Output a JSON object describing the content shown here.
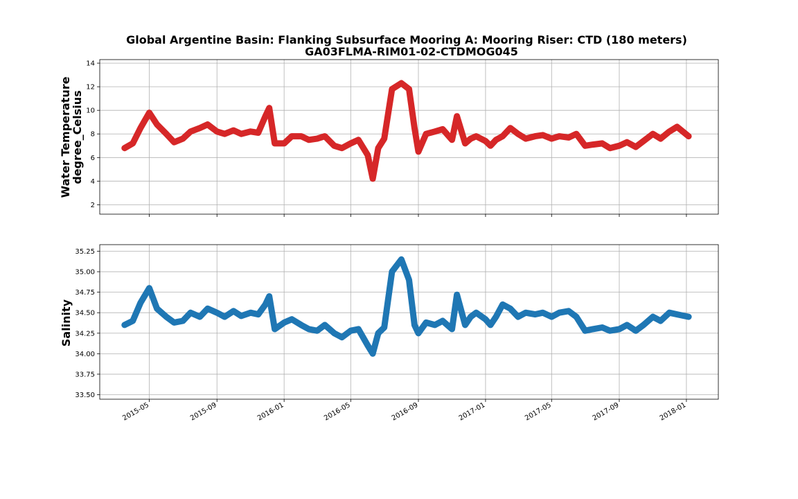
{
  "chart_data": {
    "title": "Global Argentine Basin: Flanking Subsurface Mooring A: Mooring Riser: CTD (180 meters)",
    "subtitle": "GA03FLMA-RIM01-02-CTDMOG045",
    "x_ticks": [
      "2015-05",
      "2015-09",
      "2016-01",
      "2016-05",
      "2016-09",
      "2017-01",
      "2017-05",
      "2017-09",
      "2018-01"
    ],
    "panels": [
      {
        "type": "scatter",
        "ylabel_line1": "Water Temperature",
        "ylabel_line2": "degree_Celsius",
        "color": "#d62728",
        "ylim": [
          1.2,
          14.3
        ],
        "yticks": [
          "2",
          "4",
          "6",
          "8",
          "10",
          "12",
          "14"
        ],
        "ytick_values": [
          2,
          4,
          6,
          8,
          10,
          12,
          14
        ],
        "grid": true,
        "series": [
          {
            "x": [
              "2015-03-17",
              "2015-04-01",
              "2015-04-15",
              "2015-05-01",
              "2015-05-15",
              "2015-06-01",
              "2015-06-15",
              "2015-07-01",
              "2015-07-15",
              "2015-08-01",
              "2015-08-15",
              "2015-09-01",
              "2015-09-15",
              "2015-10-01",
              "2015-10-15",
              "2015-11-01",
              "2015-11-15",
              "2015-11-28",
              "2015-12-05",
              "2015-12-15",
              "2016-01-01",
              "2016-01-15",
              "2016-02-01",
              "2016-02-15",
              "2016-03-01",
              "2016-03-15",
              "2016-04-01",
              "2016-04-15",
              "2016-05-01",
              "2016-05-15",
              "2016-06-01",
              "2016-06-10",
              "2016-06-20",
              "2016-07-01",
              "2016-07-15",
              "2016-08-01",
              "2016-08-15",
              "2016-08-25",
              "2016-09-01",
              "2016-09-15",
              "2016-10-01",
              "2016-10-15",
              "2016-11-01",
              "2016-11-10",
              "2016-11-25",
              "2016-12-05",
              "2016-12-15",
              "2017-01-01",
              "2017-01-10",
              "2017-01-20",
              "2017-02-01",
              "2017-02-15",
              "2017-03-01",
              "2017-03-15",
              "2017-04-01",
              "2017-04-15",
              "2017-05-01",
              "2017-05-15",
              "2017-06-01",
              "2017-06-15",
              "2017-07-01",
              "2017-07-15",
              "2017-08-01",
              "2017-08-15",
              "2017-09-01",
              "2017-09-15",
              "2017-10-01",
              "2017-10-15",
              "2017-11-01",
              "2017-11-15",
              "2017-12-01",
              "2017-12-15",
              "2018-01-05"
            ],
            "y": [
              6.8,
              7.2,
              8.5,
              9.8,
              8.8,
              8.0,
              7.3,
              7.6,
              8.2,
              8.5,
              8.8,
              8.2,
              8.0,
              8.3,
              8.0,
              8.2,
              8.1,
              9.5,
              10.2,
              7.2,
              7.2,
              7.8,
              7.8,
              7.5,
              7.6,
              7.8,
              7.0,
              6.8,
              7.2,
              7.5,
              6.2,
              4.2,
              6.8,
              7.6,
              11.8,
              12.3,
              11.8,
              8.5,
              6.5,
              8.0,
              8.2,
              8.4,
              7.5,
              9.5,
              7.2,
              7.6,
              7.8,
              7.4,
              7.0,
              7.5,
              7.8,
              8.5,
              8.0,
              7.6,
              7.8,
              7.9,
              7.6,
              7.8,
              7.7,
              8.0,
              7.0,
              7.1,
              7.2,
              6.8,
              7.0,
              7.3,
              6.9,
              7.4,
              8.0,
              7.6,
              8.2,
              8.6,
              7.8
            ]
          }
        ]
      },
      {
        "type": "scatter",
        "ylabel_line1": "Salinity",
        "color": "#1f77b4",
        "ylim": [
          33.445,
          35.33
        ],
        "yticks": [
          "33.50",
          "33.75",
          "34.00",
          "34.25",
          "34.50",
          "34.75",
          "35.00",
          "35.25"
        ],
        "ytick_values": [
          33.5,
          33.75,
          34.0,
          34.25,
          34.5,
          34.75,
          35.0,
          35.25
        ],
        "grid": true,
        "series": [
          {
            "x": [
              "2015-03-17",
              "2015-04-01",
              "2015-04-15",
              "2015-05-01",
              "2015-05-15",
              "2015-06-01",
              "2015-06-15",
              "2015-07-01",
              "2015-07-15",
              "2015-08-01",
              "2015-08-15",
              "2015-09-01",
              "2015-09-15",
              "2015-10-01",
              "2015-10-15",
              "2015-11-01",
              "2015-11-15",
              "2015-11-28",
              "2015-12-05",
              "2015-12-15",
              "2016-01-01",
              "2016-01-15",
              "2016-02-01",
              "2016-02-15",
              "2016-03-01",
              "2016-03-15",
              "2016-04-01",
              "2016-04-15",
              "2016-05-01",
              "2016-05-15",
              "2016-06-01",
              "2016-06-10",
              "2016-06-20",
              "2016-07-01",
              "2016-07-15",
              "2016-08-01",
              "2016-08-15",
              "2016-08-25",
              "2016-09-01",
              "2016-09-15",
              "2016-10-01",
              "2016-10-15",
              "2016-11-01",
              "2016-11-10",
              "2016-11-25",
              "2016-12-05",
              "2016-12-15",
              "2017-01-01",
              "2017-01-10",
              "2017-01-20",
              "2017-02-01",
              "2017-02-15",
              "2017-03-01",
              "2017-03-15",
              "2017-04-01",
              "2017-04-15",
              "2017-05-01",
              "2017-05-15",
              "2017-06-01",
              "2017-06-15",
              "2017-07-01",
              "2017-07-15",
              "2017-08-01",
              "2017-08-15",
              "2017-09-01",
              "2017-09-15",
              "2017-10-01",
              "2017-10-15",
              "2017-11-01",
              "2017-11-15",
              "2017-12-01",
              "2017-12-15",
              "2018-01-05"
            ],
            "y": [
              34.35,
              34.4,
              34.62,
              34.8,
              34.55,
              34.45,
              34.38,
              34.4,
              34.5,
              34.45,
              34.55,
              34.5,
              34.45,
              34.52,
              34.46,
              34.5,
              34.48,
              34.6,
              34.7,
              34.3,
              34.38,
              34.42,
              34.35,
              34.3,
              34.28,
              34.35,
              34.25,
              34.2,
              34.28,
              34.3,
              34.1,
              34.0,
              34.25,
              34.32,
              35.0,
              35.15,
              34.9,
              34.35,
              34.25,
              34.38,
              34.35,
              34.4,
              34.3,
              34.72,
              34.35,
              34.45,
              34.5,
              34.42,
              34.35,
              34.45,
              34.6,
              34.55,
              34.45,
              34.5,
              34.48,
              34.5,
              34.45,
              34.5,
              34.52,
              34.45,
              34.28,
              34.3,
              34.32,
              34.28,
              34.3,
              34.35,
              34.28,
              34.35,
              34.45,
              34.4,
              34.5,
              34.48,
              34.45
            ]
          }
        ]
      }
    ]
  }
}
